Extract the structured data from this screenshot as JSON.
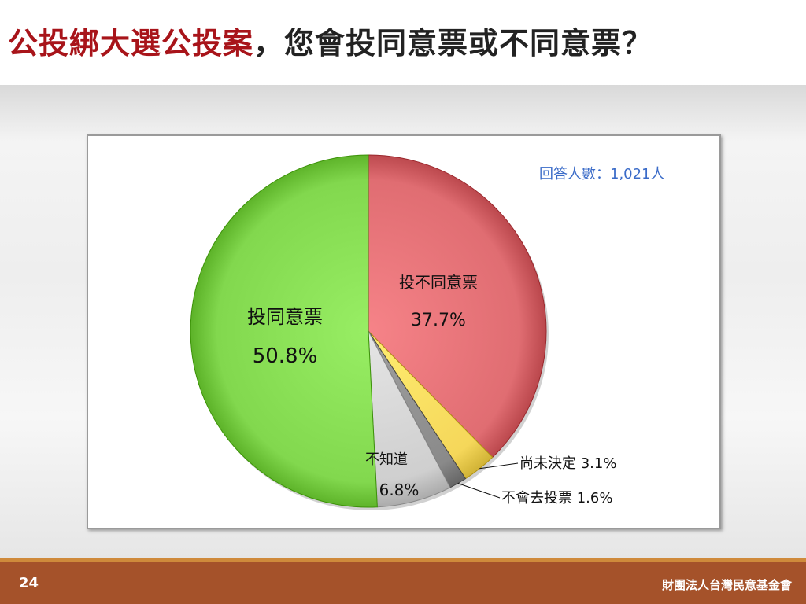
{
  "slide": {
    "title_highlight": "公投綁大選公投案",
    "title_rest": "，您會投同意票或不同意票？",
    "respondents": "回答人數：1,021人",
    "page_number": "24",
    "organization": "財團法人台灣民意基金會"
  },
  "colors": {
    "agree": "#82d84e",
    "disagree": "#e06d72",
    "undecided": "#f5d75a",
    "wont_vote": "#8a8a8a",
    "dont_know": "#cfcfcf",
    "title_highlight": "#a8141a",
    "respondents_text": "#3a6bc8",
    "footer": "#a5522a"
  },
  "chart_data": {
    "type": "pie",
    "slices": [
      {
        "name": "投不同意票",
        "value": 37.7,
        "label": "37.7%",
        "color_key": "disagree"
      },
      {
        "name": "尚未決定",
        "value": 3.1,
        "label": "3.1%",
        "color_key": "undecided"
      },
      {
        "name": "不會去投票",
        "value": 1.6,
        "label": "1.6%",
        "color_key": "wont_vote"
      },
      {
        "name": "不知道",
        "value": 6.8,
        "label": "6.8%",
        "color_key": "dont_know"
      },
      {
        "name": "投同意票",
        "value": 50.8,
        "label": "50.8%",
        "color_key": "agree"
      }
    ]
  }
}
